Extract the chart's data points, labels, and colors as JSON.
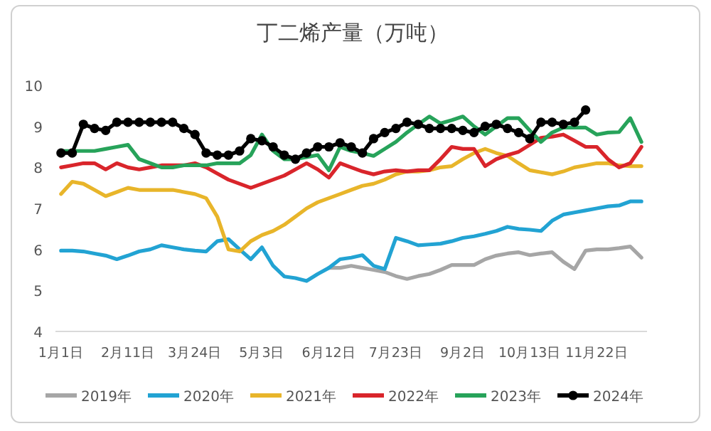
{
  "chart_data": {
    "type": "line",
    "title": "丁二烯产量（万吨）",
    "categories": [
      "1月1日",
      null,
      null,
      null,
      null,
      null,
      "2月11日",
      null,
      null,
      null,
      null,
      null,
      "3月24日",
      null,
      null,
      null,
      null,
      null,
      "5月3日",
      null,
      null,
      null,
      null,
      null,
      "6月12日",
      null,
      null,
      null,
      null,
      null,
      "7月23日",
      null,
      null,
      null,
      null,
      null,
      "9月2日",
      null,
      null,
      null,
      null,
      null,
      "10月13日",
      null,
      null,
      null,
      null,
      null,
      "11月22日",
      null,
      null,
      null,
      null
    ],
    "ylim": [
      4,
      10
    ],
    "yticks": [
      4,
      5,
      6,
      7,
      8,
      9,
      10
    ],
    "grid": false,
    "legend": "bottom",
    "line_style": "solid",
    "series": [
      {
        "name": "2019年",
        "color": "#a6a6a6",
        "values": [
          null,
          null,
          null,
          null,
          null,
          null,
          null,
          null,
          null,
          null,
          null,
          null,
          null,
          null,
          null,
          null,
          null,
          null,
          null,
          null,
          null,
          null,
          null,
          null,
          5.55,
          5.55,
          5.6,
          5.55,
          5.5,
          5.45,
          5.35,
          5.28,
          5.35,
          5.4,
          5.5,
          5.62,
          5.62,
          5.62,
          5.76,
          5.85,
          5.9,
          5.93,
          5.86,
          5.9,
          5.93,
          5.7,
          5.52,
          5.97,
          6.0,
          6.0,
          6.03,
          6.07,
          5.8
        ]
      },
      {
        "name": "2020年",
        "color": "#22a3d3",
        "values": [
          5.97,
          5.97,
          5.95,
          5.9,
          5.85,
          5.76,
          5.85,
          5.95,
          6.0,
          6.1,
          6.05,
          6.0,
          5.97,
          5.95,
          6.2,
          6.25,
          6.0,
          5.76,
          6.05,
          5.6,
          5.34,
          5.3,
          5.23,
          5.4,
          5.55,
          5.76,
          5.8,
          5.86,
          5.6,
          5.52,
          6.28,
          6.2,
          6.1,
          6.12,
          6.14,
          6.2,
          6.28,
          6.32,
          6.38,
          6.45,
          6.55,
          6.5,
          6.48,
          6.45,
          6.7,
          6.85,
          6.9,
          6.95,
          7.0,
          7.05,
          7.07,
          7.17,
          7.17
        ]
      },
      {
        "name": "2021年",
        "color": "#e8b52a",
        "values": [
          7.35,
          7.65,
          7.6,
          7.45,
          7.3,
          7.4,
          7.5,
          7.45,
          7.45,
          7.45,
          7.45,
          7.4,
          7.35,
          7.25,
          6.8,
          6.0,
          5.95,
          6.2,
          6.35,
          6.45,
          6.6,
          6.8,
          7.0,
          7.15,
          7.25,
          7.35,
          7.45,
          7.55,
          7.6,
          7.7,
          7.83,
          7.9,
          7.9,
          7.93,
          8.0,
          8.03,
          8.2,
          8.35,
          8.45,
          8.35,
          8.28,
          8.1,
          7.93,
          7.88,
          7.83,
          7.9,
          8.0,
          8.05,
          8.1,
          8.1,
          8.05,
          8.03,
          8.03
        ]
      },
      {
        "name": "2022年",
        "color": "#d9252b",
        "values": [
          8.0,
          8.05,
          8.1,
          8.1,
          7.95,
          8.1,
          8.0,
          7.95,
          8.0,
          8.05,
          8.05,
          8.05,
          8.1,
          8.0,
          7.85,
          7.7,
          7.6,
          7.5,
          7.6,
          7.7,
          7.8,
          7.95,
          8.1,
          7.95,
          7.75,
          8.1,
          8.0,
          7.9,
          7.83,
          7.9,
          7.93,
          7.9,
          7.93,
          7.93,
          8.2,
          8.5,
          8.45,
          8.45,
          8.03,
          8.2,
          8.3,
          8.38,
          8.55,
          8.72,
          8.75,
          8.8,
          8.65,
          8.5,
          8.5,
          8.2,
          8.0,
          8.1,
          8.5
        ]
      },
      {
        "name": "2023年",
        "color": "#27a35a",
        "values": [
          8.4,
          8.4,
          8.4,
          8.4,
          8.45,
          8.5,
          8.55,
          8.2,
          8.1,
          8.0,
          8.0,
          8.05,
          8.05,
          8.05,
          8.1,
          8.1,
          8.1,
          8.3,
          8.8,
          8.4,
          8.2,
          8.2,
          8.25,
          8.3,
          7.93,
          8.5,
          8.4,
          8.35,
          8.28,
          8.45,
          8.62,
          8.85,
          9.05,
          9.24,
          9.07,
          9.15,
          9.24,
          9.0,
          8.8,
          9.0,
          9.2,
          9.2,
          8.9,
          8.62,
          8.85,
          8.97,
          8.97,
          8.97,
          8.8,
          8.85,
          8.86,
          9.2,
          8.62
        ]
      },
      {
        "name": "2024年",
        "color": "#000000",
        "marker": "circle",
        "values": [
          8.35,
          8.35,
          9.05,
          8.95,
          8.9,
          9.1,
          9.1,
          9.1,
          9.1,
          9.1,
          9.1,
          8.95,
          8.8,
          8.35,
          8.3,
          8.3,
          8.4,
          8.7,
          8.65,
          8.5,
          8.3,
          8.2,
          8.35,
          8.5,
          8.5,
          8.6,
          8.5,
          8.35,
          8.7,
          8.85,
          8.95,
          9.1,
          9.05,
          8.95,
          8.95,
          8.95,
          8.9,
          8.85,
          9.0,
          9.05,
          8.95,
          8.85,
          8.7,
          9.1,
          9.1,
          9.05,
          9.1,
          9.4,
          null,
          null,
          null,
          null,
          null
        ]
      }
    ]
  }
}
